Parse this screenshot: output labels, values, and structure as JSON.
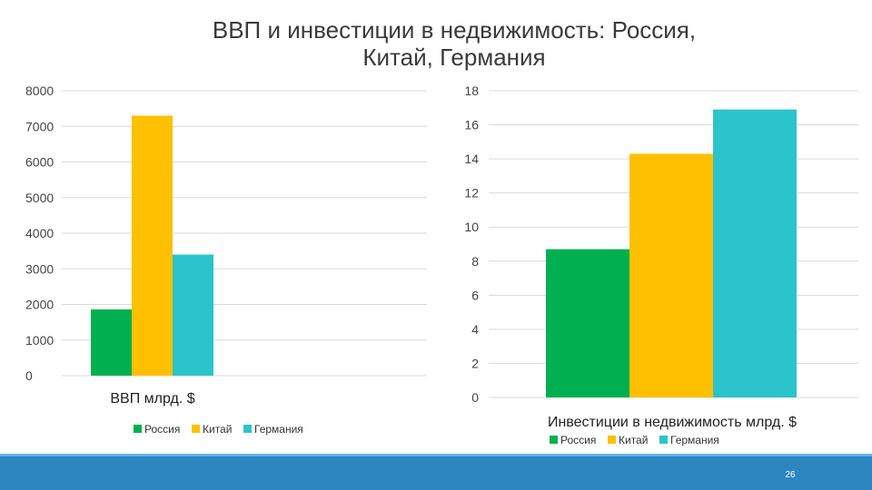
{
  "slide": {
    "title_line1": "ВВП и инвестиции в недвижимость: Россия,",
    "title_line2": "Китай, Германия",
    "page_number": "26"
  },
  "colors": {
    "Россия": "#00b050",
    "Китай": "#ffc000",
    "Германия": "#2bc4cc",
    "footer": "#2e86c1",
    "gridline": "#d9d9d9"
  },
  "chart_data": [
    {
      "type": "bar",
      "categories": [
        "ВВП млрд. $"
      ],
      "series": [
        {
          "name": "Россия",
          "values": [
            1860
          ]
        },
        {
          "name": "Китай",
          "values": [
            7300
          ]
        },
        {
          "name": "Германия",
          "values": [
            3400
          ]
        }
      ],
      "ylim": [
        0,
        8000
      ],
      "yticks": [
        "0",
        "1000",
        "2000",
        "3000",
        "4000",
        "5000",
        "6000",
        "7000",
        "8000"
      ],
      "grid": true,
      "legend": "bottom"
    },
    {
      "type": "bar",
      "categories": [
        "Инвестиции в недвижимость млрд. $"
      ],
      "series": [
        {
          "name": "Россия",
          "values": [
            8.7
          ]
        },
        {
          "name": "Китай",
          "values": [
            14.3
          ]
        },
        {
          "name": "Германия",
          "values": [
            16.9
          ]
        }
      ],
      "ylim": [
        0,
        18
      ],
      "yticks": [
        "0",
        "2",
        "4",
        "6",
        "8",
        "10",
        "12",
        "14",
        "16",
        "18"
      ],
      "grid": true,
      "legend": "bottom"
    }
  ]
}
